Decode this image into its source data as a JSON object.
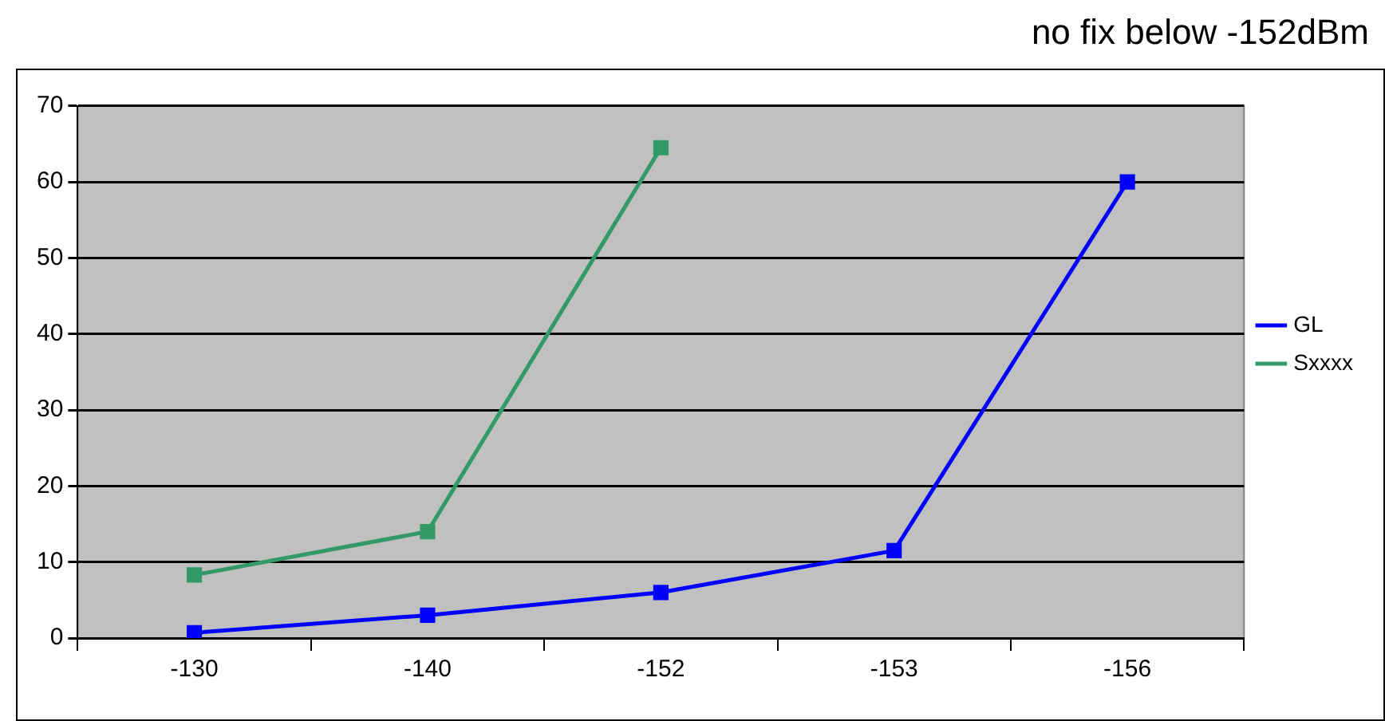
{
  "chart_data": {
    "type": "line",
    "title": "no fix below -152dBm",
    "categories": [
      "-130",
      "-140",
      "-152",
      "-153",
      "-156"
    ],
    "series": [
      {
        "name": "GL",
        "color": "#0000ff",
        "values": [
          0.7,
          3,
          6,
          11.5,
          60
        ]
      },
      {
        "name": "Sxxxx",
        "color": "#339966",
        "values": [
          8.3,
          14,
          64.5,
          null,
          null
        ]
      }
    ],
    "ylim": [
      0,
      70
    ],
    "yticks": [
      0,
      10,
      20,
      30,
      40,
      50,
      60,
      70
    ],
    "grid": "y",
    "legend": "right",
    "marker": "square",
    "line_style": "solid"
  }
}
